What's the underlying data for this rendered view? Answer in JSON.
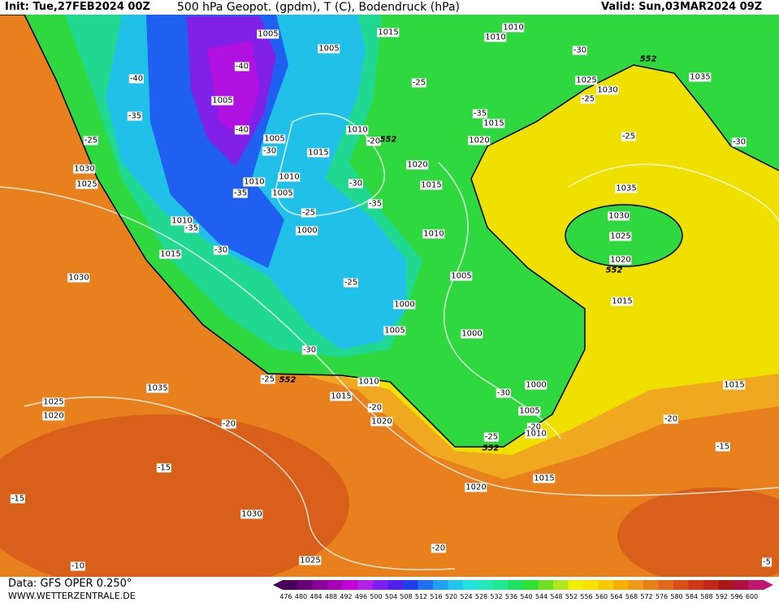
{
  "header": {
    "init": "Init: Tue,27FEB2024 00Z",
    "title": "500 hPa Geopot. (gpdm), T (C), Bodendruck (hPa)",
    "valid": "Valid: Sun,03MAR2024 09Z"
  },
  "footer": {
    "data": "Data: GFS OPER 0.250°",
    "site": "WWW.WETTERZENTRALE.DE"
  },
  "colorbar": {
    "ticks": [
      476,
      480,
      484,
      488,
      492,
      496,
      500,
      504,
      508,
      512,
      516,
      520,
      524,
      528,
      532,
      536,
      540,
      544,
      548,
      552,
      556,
      560,
      564,
      568,
      572,
      576,
      580,
      584,
      588,
      592,
      596,
      600
    ],
    "colors": [
      "#4a0058",
      "#6a0078",
      "#8a0098",
      "#a800b8",
      "#c400d8",
      "#b020e8",
      "#8020f0",
      "#5020f0",
      "#2040f0",
      "#2070f0",
      "#20a0f0",
      "#20c8f0",
      "#20e0e0",
      "#20e8b8",
      "#20e890",
      "#20e060",
      "#30e030",
      "#70e020",
      "#b0e820",
      "#f0f000",
      "#f8e000",
      "#f8c800",
      "#f8b000",
      "#f09818",
      "#e88018",
      "#e06818",
      "#d85018",
      "#d03818",
      "#c02818",
      "#a81818",
      "#b01040",
      "#c01870"
    ]
  },
  "map": {
    "labels": [
      "1005",
      "1015",
      "1010",
      "1010",
      "-30",
      "552",
      "1035",
      "-40",
      "-40",
      "1005",
      "-25",
      "1025",
      "1030",
      "-25",
      "1005",
      "-35",
      "-35",
      "1015",
      "-40",
      "1010",
      "-20",
      "552",
      "1020",
      "-25",
      "-30",
      "-25",
      "1005",
      "-30",
      "1015",
      "1030",
      "1020",
      "1010",
      "1010",
      "1025",
      "1015",
      "-30",
      "1005",
      "-35",
      "1035",
      "-35",
      "-25",
      "1030",
      "1010",
      "-35",
      "1000",
      "1010",
      "1025",
      "-30",
      "1015",
      "1020",
      "552",
      "1030",
      "1005",
      "-25",
      "1015",
      "1000",
      "1005",
      "1000",
      "-30",
      "-25",
      "552",
      "1010",
      "1000",
      "1015",
      "1035",
      "1015",
      "-30",
      "-20",
      "1025",
      "1005",
      "1020",
      "1020",
      "-20",
      "-20",
      "-20",
      "1010",
      "-25",
      "552",
      "-15",
      "-15",
      "1020",
      "1015",
      "-15",
      "1030",
      "-20",
      "1025",
      "-10",
      "-5"
    ]
  }
}
